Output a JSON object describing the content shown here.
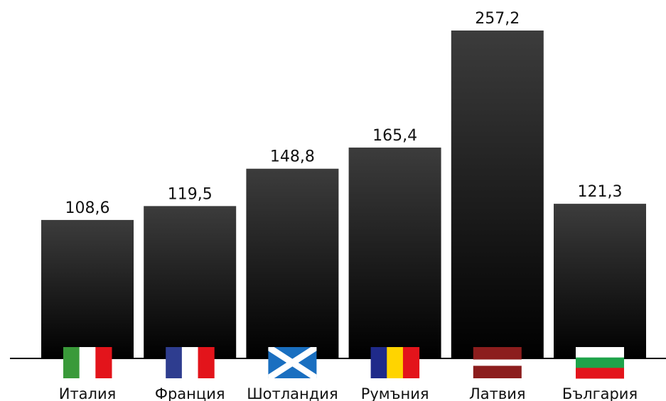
{
  "chart_data": {
    "type": "bar",
    "title": "",
    "xlabel": "",
    "ylabel": "",
    "categories": [
      "Италия",
      "Франция",
      "Шотландия",
      "Румъния",
      "Латвия",
      "България"
    ],
    "values": [
      108.6,
      119.5,
      148.8,
      165.4,
      257.2,
      121.3
    ],
    "value_labels": [
      "108,6",
      "119,5",
      "148,8",
      "165,4",
      "257,2",
      "121,3"
    ],
    "flags": [
      {
        "name": "italy-flag-icon",
        "style": "vertical",
        "colors": [
          "#3a9a3a",
          "#ffffff",
          "#e3141b"
        ]
      },
      {
        "name": "france-flag-icon",
        "style": "vertical",
        "colors": [
          "#2e3d8f",
          "#ffffff",
          "#e3141b"
        ]
      },
      {
        "name": "scotland-flag-icon",
        "style": "saltire",
        "colors": [
          "#1a6fc0",
          "#ffffff"
        ]
      },
      {
        "name": "romania-flag-icon",
        "style": "vertical",
        "colors": [
          "#1f2a8a",
          "#ffd400",
          "#e3141b"
        ]
      },
      {
        "name": "latvia-flag-icon",
        "style": "horizontal-latvia",
        "colors": [
          "#8c1d1d",
          "#ffffff",
          "#8c1d1d"
        ]
      },
      {
        "name": "bulgaria-flag-icon",
        "style": "horizontal",
        "colors": [
          "#ffffff",
          "#1ea34a",
          "#e3141b"
        ]
      }
    ],
    "colors": {
      "bar_top": "#3c3c3c",
      "bar_bottom": "#000000",
      "axis": "#000000"
    },
    "ylim": [
      0,
      270
    ],
    "grid": false,
    "legend": "none"
  }
}
